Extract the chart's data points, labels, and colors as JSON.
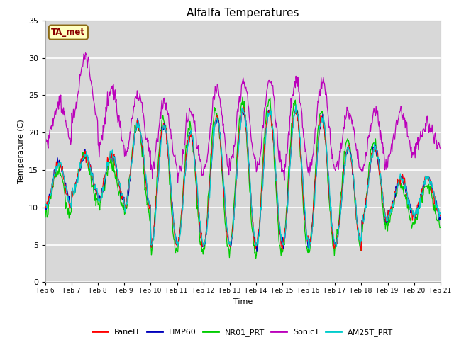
{
  "title": "Alfalfa Temperatures",
  "xlabel": "Time",
  "ylabel": "Temperature (C)",
  "ylim": [
    0,
    35
  ],
  "x_tick_labels": [
    "Feb 6",
    "Feb 7",
    "Feb 8",
    "Feb 9",
    "Feb 10",
    "Feb 11",
    "Feb 12",
    "Feb 13",
    "Feb 14",
    "Feb 15",
    "Feb 16",
    "Feb 17",
    "Feb 18",
    "Feb 19",
    "Feb 20",
    "Feb 21"
  ],
  "annotation_text": "TA_met",
  "annotation_facecolor": "#FFFFC0",
  "annotation_edgecolor": "#8B6914",
  "series_colors": {
    "PanelT": "#FF0000",
    "HMP60": "#0000BB",
    "NR01_PRT": "#00CC00",
    "SonicT": "#BB00BB",
    "AM25T_PRT": "#00CCCC"
  },
  "plot_bg_color": "#D8D8D8",
  "grid_color": "#FFFFFF"
}
